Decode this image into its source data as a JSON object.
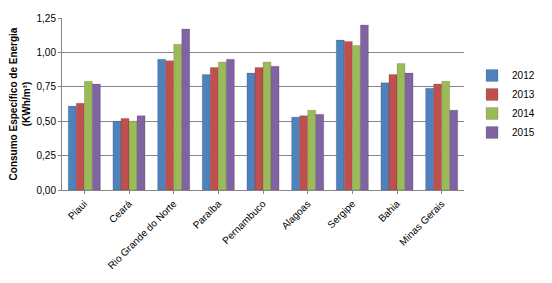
{
  "chart_data": {
    "type": "bar",
    "y_label": "Consumo Específico de Energia (KWh/m³)",
    "categories": [
      "Piaui",
      "Ceará",
      "Rio Grande do Norte",
      "Paraíba",
      "Pernambuco",
      "Alagoas",
      "Sergipe",
      "Bahia",
      "Minas Gerais"
    ],
    "series": [
      {
        "name": "2012",
        "color": "#4f81bd",
        "values": [
          0.61,
          0.5,
          0.95,
          0.84,
          0.85,
          0.53,
          1.09,
          0.78,
          0.74
        ]
      },
      {
        "name": "2013",
        "color": "#c0504d",
        "values": [
          0.63,
          0.52,
          0.94,
          0.89,
          0.89,
          0.54,
          1.08,
          0.84,
          0.77
        ]
      },
      {
        "name": "2014",
        "color": "#9bbb59",
        "values": [
          0.79,
          0.5,
          1.06,
          0.93,
          0.93,
          0.58,
          1.05,
          0.92,
          0.79
        ]
      },
      {
        "name": "2015",
        "color": "#8064a2",
        "values": [
          0.77,
          0.54,
          1.17,
          0.95,
          0.9,
          0.55,
          1.2,
          0.85,
          0.58
        ]
      }
    ],
    "ylim": [
      0,
      1.25
    ],
    "yticks": [
      {
        "value": 0,
        "label": "0,00"
      },
      {
        "value": 0.25,
        "label": "0,25"
      },
      {
        "value": 0.5,
        "label": "0,50"
      },
      {
        "value": 0.75,
        "label": "0,75"
      },
      {
        "value": 1,
        "label": "1,00"
      },
      {
        "value": 1.25,
        "label": "1,25"
      }
    ],
    "grid": true,
    "legend": "right"
  }
}
